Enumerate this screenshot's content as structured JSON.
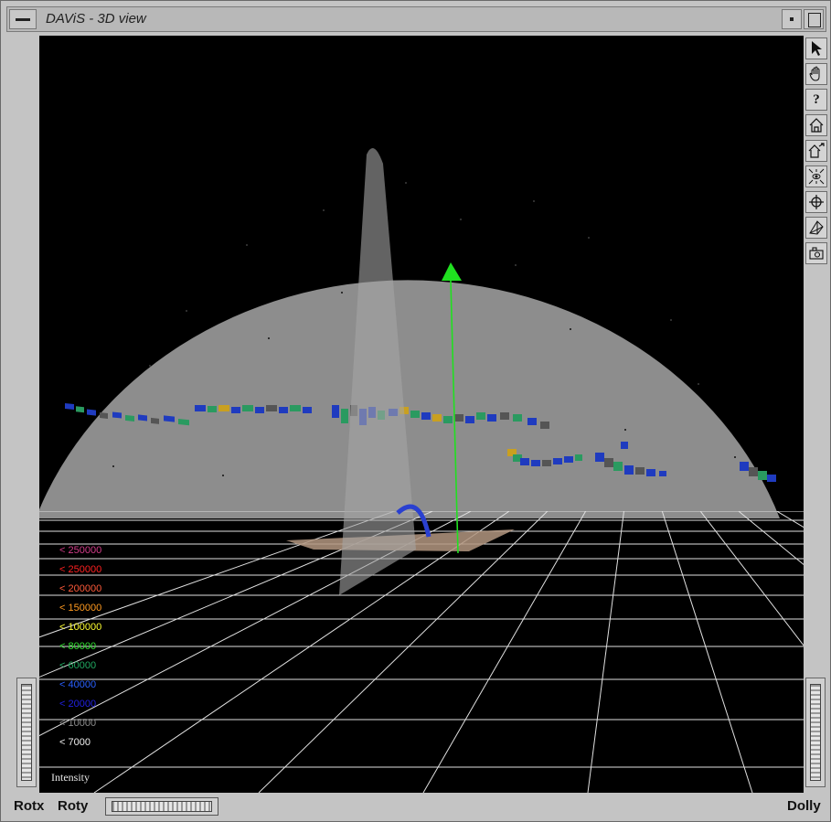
{
  "window": {
    "title": "DAViS - 3D view"
  },
  "toolbar": {
    "tools": [
      {
        "name": "pick-arrow-icon"
      },
      {
        "name": "view-hand-icon"
      },
      {
        "name": "help-icon",
        "glyph": "?"
      },
      {
        "name": "home-icon"
      },
      {
        "name": "set-home-icon"
      },
      {
        "name": "view-all-icon"
      },
      {
        "name": "seek-icon"
      },
      {
        "name": "projection-icon"
      },
      {
        "name": "camera-icon"
      }
    ]
  },
  "bottom_bar": {
    "rotx_label": "Rotx",
    "roty_label": "Roty",
    "dolly_label": "Dolly"
  },
  "legend": {
    "title": "Intensity",
    "entries": [
      {
        "label": "< 250000",
        "color": "#d33d8a"
      },
      {
        "label": "< 250000",
        "color": "#ff2020"
      },
      {
        "label": "< 200000",
        "color": "#ff5a3a"
      },
      {
        "label": "< 150000",
        "color": "#ff9a20"
      },
      {
        "label": "< 100000",
        "color": "#ffff30"
      },
      {
        "label": "< 80000",
        "color": "#30e030"
      },
      {
        "label": "< 60000",
        "color": "#20a860"
      },
      {
        "label": "< 40000",
        "color": "#2a60ff"
      },
      {
        "label": "< 20000",
        "color": "#2020e0"
      },
      {
        "label": "< 10000",
        "color": "#8a8a8a"
      },
      {
        "label": "< 7000",
        "color": "#f0f0f0"
      }
    ]
  },
  "colors": {
    "background": "#000000",
    "dome": "#8c8c8c",
    "axis": "#20e020",
    "grid": "#e0e0e0"
  }
}
